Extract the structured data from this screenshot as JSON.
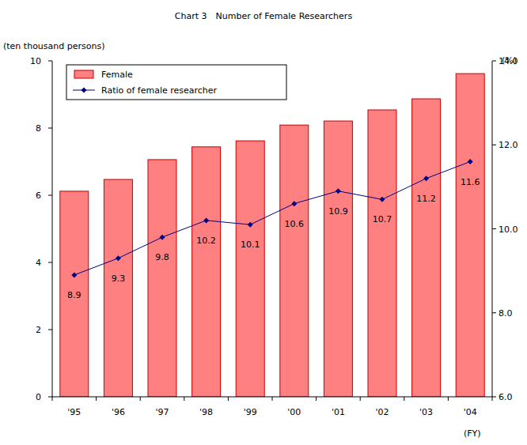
{
  "chart_data": {
    "type": "bar",
    "title": "Chart 3　Number of  Female Researchers",
    "y_label": "(ten thousand persons)",
    "y2_label": "(%)",
    "x_label": "(FY)",
    "categories": [
      "'95",
      "'96",
      "'97",
      "'98",
      "'99",
      "'00",
      "'01",
      "'02",
      "'03",
      "'04"
    ],
    "series": [
      {
        "name": "Female",
        "type": "bar",
        "color": "#ff8080",
        "values": [
          6.12,
          6.47,
          7.06,
          7.44,
          7.62,
          8.09,
          8.21,
          8.54,
          8.87,
          9.62
        ]
      },
      {
        "name": "Ratio of female researcher",
        "type": "line",
        "axis": "y2",
        "color": "#000080",
        "marker": "diamond",
        "line_style": "solid",
        "data_labels": true,
        "values": [
          8.9,
          9.3,
          9.8,
          10.2,
          10.1,
          10.6,
          10.9,
          10.7,
          11.2,
          11.6
        ]
      }
    ],
    "ylim": [
      0,
      10
    ],
    "yticks": [
      0,
      2,
      4,
      6,
      8,
      10
    ],
    "y2lim": [
      6,
      14
    ],
    "y2ticks": [
      {
        "value": 6,
        "label": "6.0"
      },
      {
        "value": 8,
        "label": "8.0"
      },
      {
        "value": 10,
        "label": "10.0"
      },
      {
        "value": 12,
        "label": "12.0"
      },
      {
        "value": 14,
        "label": "14.0"
      }
    ],
    "grid": false,
    "legend": "upper left"
  }
}
